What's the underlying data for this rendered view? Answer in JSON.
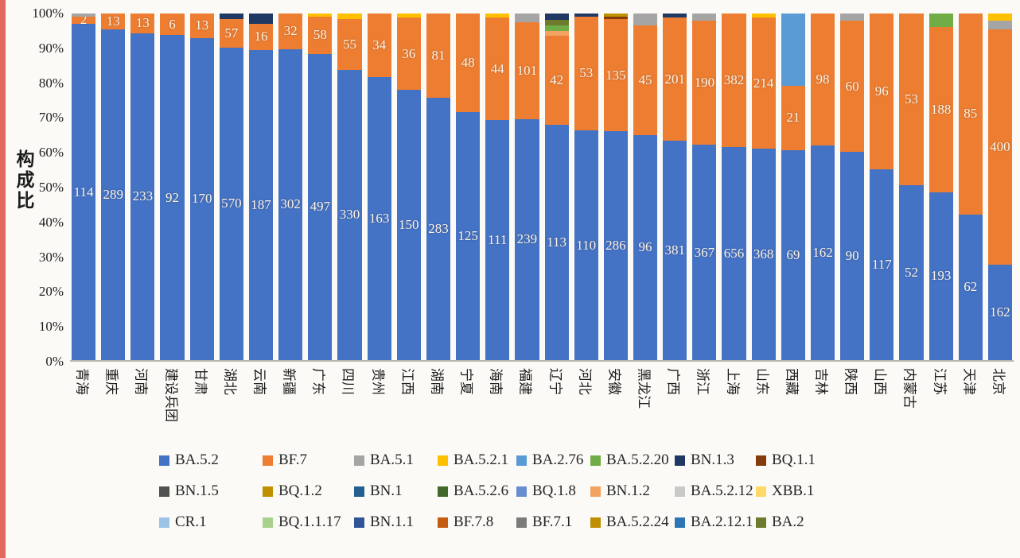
{
  "page": {
    "background": "#fbfaf6",
    "left_strip_color": "#e06a5e"
  },
  "chart_data": {
    "type": "bar",
    "stacked": true,
    "percent_stacked": true,
    "title": "",
    "xlabel": "",
    "ylabel": "构成比",
    "ylim": [
      0,
      100
    ],
    "y_ticks": [
      "0%",
      "10%",
      "20%",
      "30%",
      "40%",
      "50%",
      "60%",
      "70%",
      "80%",
      "90%",
      "100%"
    ],
    "grid": false,
    "legend_position": "bottom",
    "legend_order": [
      "BA.5.2",
      "BF.7",
      "BA.5.1",
      "BA.5.2.1",
      "BA.2.76",
      "BA.5.2.20",
      "BN.1.3",
      "BQ.1.1",
      "BN.1.5",
      "BQ.1.2",
      "BN.1",
      "BA.5.2.6",
      "BQ.1.8",
      "BN.1.2",
      "BA.5.2.12",
      "XBB.1",
      "CR.1",
      "BQ.1.1.17",
      "BN.1.1",
      "BF.7.8",
      "BF.7.1",
      "BA.5.2.24",
      "BA.2.12.1",
      "BA.2"
    ],
    "variant_colors": {
      "BA.5.2": "#4472C4",
      "BF.7": "#ED7D31",
      "BA.5.1": "#A5A5A5",
      "BA.5.2.1": "#FFC000",
      "BA.2.76": "#5B9BD5",
      "BA.5.2.20": "#70AD47",
      "BN.1.3": "#1F3864",
      "BQ.1.1": "#843C0C",
      "BN.1.5": "#525252",
      "BQ.1.2": "#BF9000",
      "BN.1": "#255E91",
      "BA.5.2.6": "#43682B",
      "BQ.1.8": "#698ED0",
      "BN.1.2": "#F4A262",
      "BA.5.2.12": "#C9C9C9",
      "XBB.1": "#FFD966",
      "CR.1": "#9DC3E6",
      "BQ.1.1.17": "#A9D18E",
      "BN.1.1": "#2F5597",
      "BF.7.8": "#C55A11",
      "BF.7.1": "#7B7B7B",
      "BA.5.2.24": "#BF8F00",
      "BA.2.12.1": "#2E75B6",
      "BA.2": "#6E7B2C"
    },
    "bars": [
      {
        "province": "青海",
        "segments": [
          {
            "variant": "BA.5.2",
            "count": 114,
            "pct": 97.0
          },
          {
            "variant": "BF.7",
            "count": 2,
            "pct": 2.2
          },
          {
            "variant": "BA.5.1",
            "pct": 0.8
          }
        ]
      },
      {
        "province": "重庆",
        "segments": [
          {
            "variant": "BA.5.2",
            "count": 289,
            "pct": 95.4
          },
          {
            "variant": "BF.7",
            "count": 13,
            "pct": 4.6
          }
        ]
      },
      {
        "province": "河南",
        "segments": [
          {
            "variant": "BA.5.2",
            "count": 233,
            "pct": 94.3
          },
          {
            "variant": "BF.7",
            "count": 13,
            "pct": 5.7
          }
        ]
      },
      {
        "province": "建设兵团",
        "segments": [
          {
            "variant": "BA.5.2",
            "count": 92,
            "pct": 93.8
          },
          {
            "variant": "BF.7",
            "count": 6,
            "pct": 6.2
          }
        ]
      },
      {
        "province": "甘肃",
        "segments": [
          {
            "variant": "BA.5.2",
            "count": 170,
            "pct": 92.9
          },
          {
            "variant": "BF.7",
            "count": 13,
            "pct": 7.1
          }
        ]
      },
      {
        "province": "湖北",
        "segments": [
          {
            "variant": "BA.5.2",
            "count": 570,
            "pct": 90.2
          },
          {
            "variant": "BF.7",
            "count": 57,
            "pct": 8.3
          },
          {
            "variant": "BN.1.3",
            "pct": 1.5
          }
        ]
      },
      {
        "province": "云南",
        "segments": [
          {
            "variant": "BA.5.2",
            "count": 187,
            "pct": 89.5
          },
          {
            "variant": "BF.7",
            "count": 16,
            "pct": 7.5
          },
          {
            "variant": "BN.1.3",
            "pct": 3.0
          }
        ]
      },
      {
        "province": "新疆",
        "segments": [
          {
            "variant": "BA.5.2",
            "count": 302,
            "pct": 89.7
          },
          {
            "variant": "BF.7",
            "count": 32,
            "pct": 10.3
          }
        ]
      },
      {
        "province": "广东",
        "segments": [
          {
            "variant": "BA.5.2",
            "count": 497,
            "pct": 88.4
          },
          {
            "variant": "BF.7",
            "count": 58,
            "pct": 10.6
          },
          {
            "variant": "BA.5.2.1",
            "pct": 1.0
          }
        ]
      },
      {
        "province": "四川",
        "segments": [
          {
            "variant": "BA.5.2",
            "count": 330,
            "pct": 83.8
          },
          {
            "variant": "BF.7",
            "count": 55,
            "pct": 14.7
          },
          {
            "variant": "BA.5.2.1",
            "pct": 1.5
          }
        ]
      },
      {
        "province": "贵州",
        "segments": [
          {
            "variant": "BA.5.2",
            "count": 163,
            "pct": 81.7
          },
          {
            "variant": "BF.7",
            "count": 34,
            "pct": 18.3
          }
        ]
      },
      {
        "province": "江西",
        "segments": [
          {
            "variant": "BA.5.2",
            "count": 150,
            "pct": 78.0
          },
          {
            "variant": "BF.7",
            "count": 36,
            "pct": 20.8
          },
          {
            "variant": "BA.5.2.1",
            "pct": 1.2
          }
        ]
      },
      {
        "province": "湖南",
        "segments": [
          {
            "variant": "BA.5.2",
            "count": 283,
            "pct": 75.6
          },
          {
            "variant": "BF.7",
            "count": 81,
            "pct": 24.4
          }
        ]
      },
      {
        "province": "宁夏",
        "segments": [
          {
            "variant": "BA.5.2",
            "count": 125,
            "pct": 71.5
          },
          {
            "variant": "BF.7",
            "count": 48,
            "pct": 28.5
          }
        ]
      },
      {
        "province": "海南",
        "segments": [
          {
            "variant": "BA.5.2",
            "count": 111,
            "pct": 69.2
          },
          {
            "variant": "BF.7",
            "count": 44,
            "pct": 29.6
          },
          {
            "variant": "BA.5.2.1",
            "pct": 1.2
          }
        ]
      },
      {
        "province": "福建",
        "segments": [
          {
            "variant": "BA.5.2",
            "count": 239,
            "pct": 69.6
          },
          {
            "variant": "BF.7",
            "count": 101,
            "pct": 27.9
          },
          {
            "variant": "BA.5.1",
            "pct": 2.5
          }
        ]
      },
      {
        "province": "辽宁",
        "segments": [
          {
            "variant": "BA.5.2",
            "count": 113,
            "pct": 68.0
          },
          {
            "variant": "BF.7",
            "count": 42,
            "pct": 25.5
          },
          {
            "variant": "BN.1.2",
            "pct": 1.5
          },
          {
            "variant": "BA.5.2.20",
            "pct": 1.6
          },
          {
            "variant": "BA.2",
            "pct": 1.6
          },
          {
            "variant": "BN.1.3",
            "pct": 1.8
          }
        ]
      },
      {
        "province": "河北",
        "segments": [
          {
            "variant": "BA.5.2",
            "count": 110,
            "pct": 66.2
          },
          {
            "variant": "BF.7",
            "count": 53,
            "pct": 33.0
          },
          {
            "variant": "BN.1.3",
            "pct": 0.8
          }
        ]
      },
      {
        "province": "安徽",
        "segments": [
          {
            "variant": "BA.5.2",
            "count": 286,
            "pct": 66.0
          },
          {
            "variant": "BF.7",
            "count": 135,
            "pct": 32.3
          },
          {
            "variant": "BQ.1.1",
            "pct": 0.7
          },
          {
            "variant": "BQ.1.2",
            "pct": 1.0
          }
        ]
      },
      {
        "province": "黑龙江",
        "segments": [
          {
            "variant": "BA.5.2",
            "count": 96,
            "pct": 65.0
          },
          {
            "variant": "BF.7",
            "count": 45,
            "pct": 31.5
          },
          {
            "variant": "BA.5.1",
            "pct": 3.5
          }
        ]
      },
      {
        "province": "广西",
        "segments": [
          {
            "variant": "BA.5.2",
            "count": 381,
            "pct": 63.2
          },
          {
            "variant": "BF.7",
            "count": 201,
            "pct": 35.6
          },
          {
            "variant": "BN.1.3",
            "pct": 1.2
          }
        ]
      },
      {
        "province": "浙江",
        "segments": [
          {
            "variant": "BA.5.2",
            "count": 367,
            "pct": 62.1
          },
          {
            "variant": "BF.7",
            "count": 190,
            "pct": 35.9
          },
          {
            "variant": "BA.5.1",
            "pct": 2.0
          }
        ]
      },
      {
        "province": "上海",
        "segments": [
          {
            "variant": "BA.5.2",
            "count": 656,
            "pct": 61.4
          },
          {
            "variant": "BF.7",
            "count": 382,
            "pct": 38.6
          }
        ]
      },
      {
        "province": "山东",
        "segments": [
          {
            "variant": "BA.5.2",
            "count": 368,
            "pct": 60.9
          },
          {
            "variant": "BF.7",
            "count": 214,
            "pct": 37.9
          },
          {
            "variant": "BA.5.2.1",
            "pct": 1.2
          }
        ]
      },
      {
        "province": "西藏",
        "segments": [
          {
            "variant": "BA.5.2",
            "count": 69,
            "pct": 60.5
          },
          {
            "variant": "BF.7",
            "count": 21,
            "pct": 18.7
          },
          {
            "variant": "BA.2.76",
            "pct": 20.8
          }
        ]
      },
      {
        "province": "吉林",
        "segments": [
          {
            "variant": "BA.5.2",
            "count": 162,
            "pct": 62.0
          },
          {
            "variant": "BF.7",
            "count": 98,
            "pct": 38.0
          }
        ]
      },
      {
        "province": "陕西",
        "segments": [
          {
            "variant": "BA.5.2",
            "count": 90,
            "pct": 60.0
          },
          {
            "variant": "BF.7",
            "count": 60,
            "pct": 38.0
          },
          {
            "variant": "BA.5.1",
            "pct": 2.0
          }
        ]
      },
      {
        "province": "山西",
        "segments": [
          {
            "variant": "BA.5.2",
            "count": 117,
            "pct": 55.0
          },
          {
            "variant": "BF.7",
            "count": 96,
            "pct": 45.0
          }
        ]
      },
      {
        "province": "内蒙古",
        "segments": [
          {
            "variant": "BA.5.2",
            "count": 52,
            "pct": 50.5
          },
          {
            "variant": "BF.7",
            "count": 53,
            "pct": 49.5
          }
        ]
      },
      {
        "province": "江苏",
        "segments": [
          {
            "variant": "BA.5.2",
            "count": 193,
            "pct": 48.5
          },
          {
            "variant": "BF.7",
            "count": 188,
            "pct": 47.5
          },
          {
            "variant": "BA.5.2.20",
            "pct": 4.0
          }
        ]
      },
      {
        "province": "天津",
        "segments": [
          {
            "variant": "BA.5.2",
            "count": 62,
            "pct": 42.0
          },
          {
            "variant": "BF.7",
            "count": 85,
            "pct": 58.0
          }
        ]
      },
      {
        "province": "北京",
        "segments": [
          {
            "variant": "BA.5.2",
            "count": 162,
            "pct": 27.5
          },
          {
            "variant": "BF.7",
            "count": 400,
            "pct": 68.0
          },
          {
            "variant": "BA.5.1",
            "pct": 2.5
          },
          {
            "variant": "BA.5.2.1",
            "pct": 2.0
          }
        ]
      }
    ]
  }
}
